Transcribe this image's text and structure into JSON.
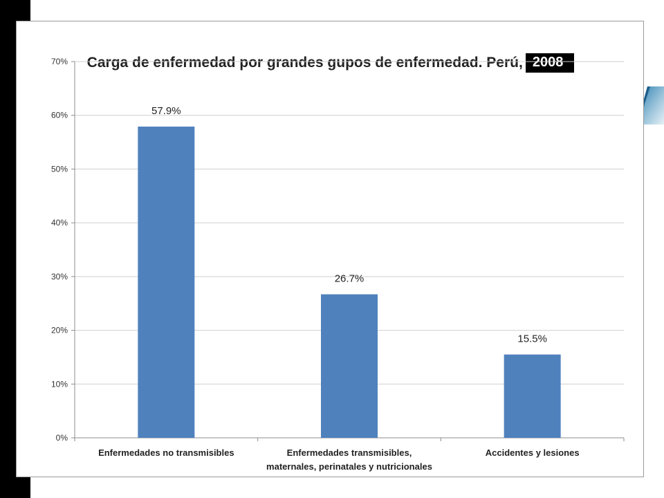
{
  "title": "Carga de enfermedad por  grandes gupos de enfermedad.  Perú,",
  "title_year": "2008",
  "chart_data": {
    "type": "bar",
    "title": "Carga de enfermedad por  grandes gupos de enfermedad.  Perú, 2008",
    "categories": [
      [
        "Enfermedades no transmisibles"
      ],
      [
        "Enfermedades transmisibles,",
        "maternales, perinatales y nutricionales"
      ],
      [
        "Accidentes y lesiones"
      ]
    ],
    "values": [
      57.9,
      26.7,
      15.5
    ],
    "value_labels": [
      "57.9%",
      "26.7%",
      "15.5%"
    ],
    "ylim": [
      0,
      70
    ],
    "yticks": [
      0,
      10,
      20,
      30,
      40,
      50,
      60,
      70
    ],
    "ytick_labels": [
      "0%",
      "10%",
      "20%",
      "30%",
      "40%",
      "50%",
      "60%",
      "70%"
    ],
    "xlabel": "",
    "ylabel": "",
    "grid": true,
    "legend": "none",
    "bar_color": "#4f81bd"
  }
}
